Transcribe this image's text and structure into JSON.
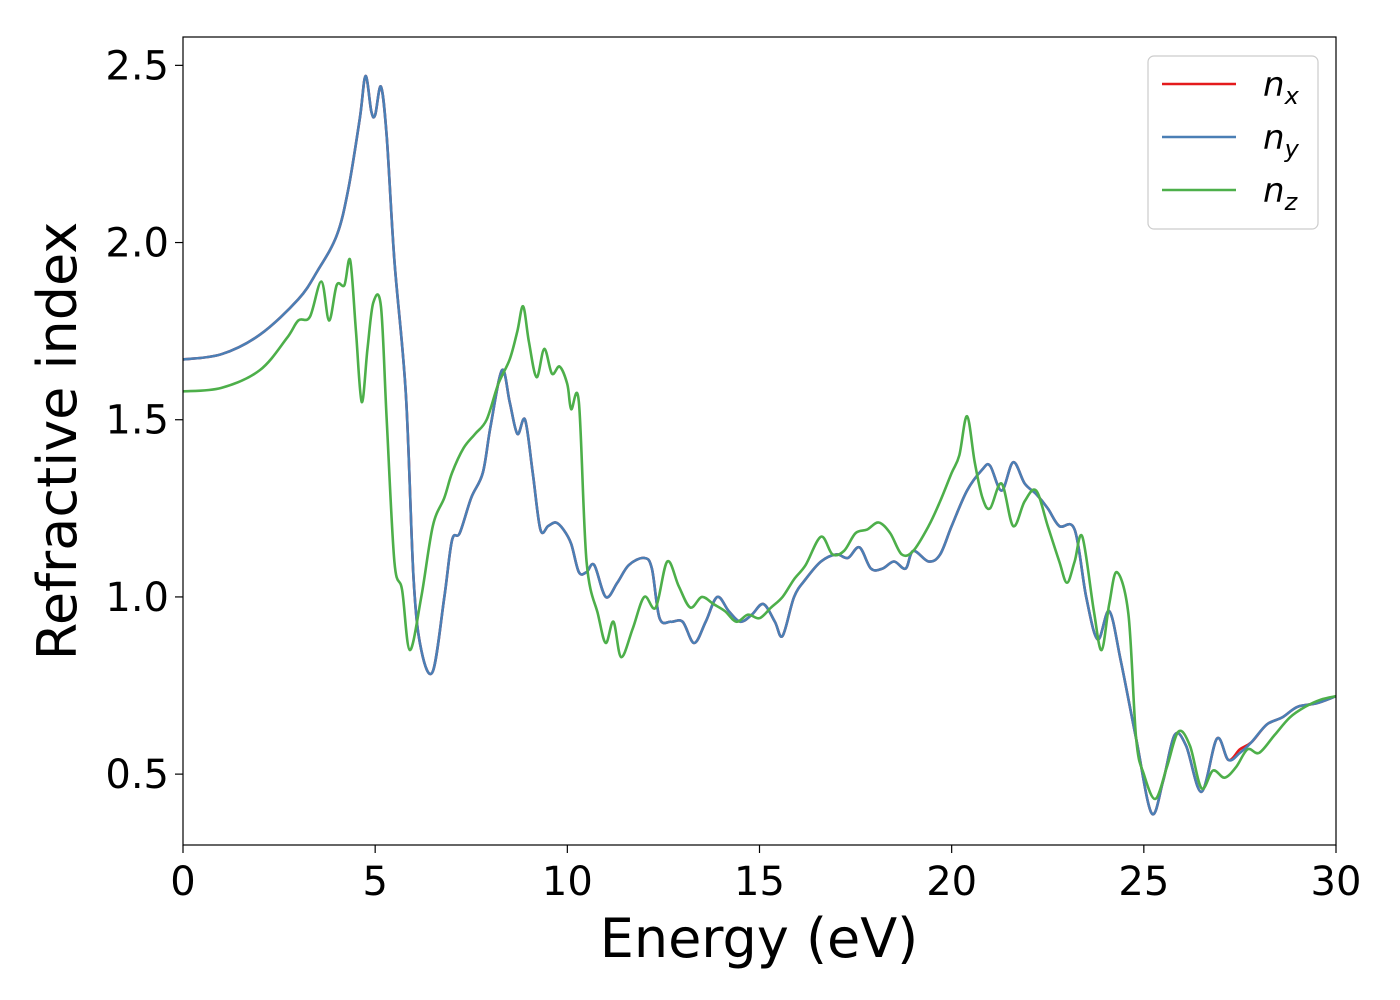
{
  "chart_data": {
    "type": "line",
    "title": "",
    "xlabel": "Energy (eV)",
    "ylabel": "Refractive index",
    "xlim": [
      0,
      30
    ],
    "ylim": [
      0.3,
      2.58
    ],
    "xticks": [
      0,
      5,
      10,
      15,
      20,
      25,
      30
    ],
    "yticks": [
      0.5,
      1.0,
      1.5,
      2.0,
      2.5
    ],
    "xtick_labels": [
      "0",
      "5",
      "10",
      "15",
      "20",
      "25",
      "30"
    ],
    "ytick_labels": [
      "0.5",
      "1.0",
      "1.5",
      "2.0",
      "2.5"
    ],
    "grid": false,
    "legend_position": "top-right",
    "series": [
      {
        "name": "n",
        "subscript": "x",
        "color": "#e41a1c",
        "points": [
          [
            0,
            1.67
          ],
          [
            1,
            1.685
          ],
          [
            2,
            1.74
          ],
          [
            3,
            1.84
          ],
          [
            3.5,
            1.92
          ],
          [
            4,
            2.02
          ],
          [
            4.3,
            2.15
          ],
          [
            4.6,
            2.35
          ],
          [
            4.75,
            2.47
          ],
          [
            4.9,
            2.37
          ],
          [
            5.0,
            2.36
          ],
          [
            5.15,
            2.44
          ],
          [
            5.3,
            2.3
          ],
          [
            5.5,
            1.95
          ],
          [
            5.8,
            1.57
          ],
          [
            6.0,
            1.05
          ],
          [
            6.2,
            0.85
          ],
          [
            6.5,
            0.79
          ],
          [
            6.8,
            1.0
          ],
          [
            7.0,
            1.16
          ],
          [
            7.2,
            1.18
          ],
          [
            7.5,
            1.28
          ],
          [
            7.8,
            1.35
          ],
          [
            8.0,
            1.48
          ],
          [
            8.3,
            1.64
          ],
          [
            8.5,
            1.55
          ],
          [
            8.7,
            1.46
          ],
          [
            8.9,
            1.5
          ],
          [
            9.1,
            1.35
          ],
          [
            9.3,
            1.19
          ],
          [
            9.5,
            1.2
          ],
          [
            9.7,
            1.21
          ],
          [
            9.9,
            1.19
          ],
          [
            10.1,
            1.15
          ],
          [
            10.3,
            1.07
          ],
          [
            10.5,
            1.07
          ],
          [
            10.7,
            1.09
          ],
          [
            11.0,
            1.0
          ],
          [
            11.3,
            1.04
          ],
          [
            11.6,
            1.09
          ],
          [
            12.0,
            1.11
          ],
          [
            12.2,
            1.08
          ],
          [
            12.4,
            0.94
          ],
          [
            12.7,
            0.93
          ],
          [
            13.0,
            0.93
          ],
          [
            13.3,
            0.87
          ],
          [
            13.6,
            0.93
          ],
          [
            13.9,
            1.0
          ],
          [
            14.2,
            0.96
          ],
          [
            14.5,
            0.93
          ],
          [
            14.8,
            0.95
          ],
          [
            15.1,
            0.98
          ],
          [
            15.4,
            0.93
          ],
          [
            15.6,
            0.89
          ],
          [
            15.9,
            1.0
          ],
          [
            16.2,
            1.05
          ],
          [
            16.6,
            1.1
          ],
          [
            17.0,
            1.12
          ],
          [
            17.3,
            1.11
          ],
          [
            17.6,
            1.14
          ],
          [
            17.9,
            1.08
          ],
          [
            18.2,
            1.08
          ],
          [
            18.5,
            1.1
          ],
          [
            18.8,
            1.08
          ],
          [
            19.0,
            1.13
          ],
          [
            19.4,
            1.1
          ],
          [
            19.7,
            1.12
          ],
          [
            20.0,
            1.2
          ],
          [
            20.4,
            1.3
          ],
          [
            20.8,
            1.36
          ],
          [
            21.0,
            1.37
          ],
          [
            21.3,
            1.3
          ],
          [
            21.6,
            1.38
          ],
          [
            21.9,
            1.32
          ],
          [
            22.2,
            1.29
          ],
          [
            22.5,
            1.25
          ],
          [
            22.8,
            1.2
          ],
          [
            23.2,
            1.19
          ],
          [
            23.5,
            1.0
          ],
          [
            23.8,
            0.88
          ],
          [
            24.1,
            0.96
          ],
          [
            24.4,
            0.82
          ],
          [
            24.8,
            0.6
          ],
          [
            25.2,
            0.39
          ],
          [
            25.5,
            0.48
          ],
          [
            25.8,
            0.61
          ],
          [
            26.1,
            0.58
          ],
          [
            26.5,
            0.45
          ],
          [
            26.9,
            0.6
          ],
          [
            27.2,
            0.54
          ],
          [
            27.5,
            0.57
          ],
          [
            27.8,
            0.59
          ],
          [
            28.2,
            0.64
          ],
          [
            28.6,
            0.66
          ],
          [
            29.0,
            0.69
          ],
          [
            29.5,
            0.7
          ],
          [
            30.0,
            0.72
          ]
        ]
      },
      {
        "name": "n",
        "subscript": "y",
        "color": "#4a7fb5",
        "points": [
          [
            0,
            1.67
          ],
          [
            1,
            1.685
          ],
          [
            2,
            1.74
          ],
          [
            3,
            1.84
          ],
          [
            3.5,
            1.92
          ],
          [
            4,
            2.02
          ],
          [
            4.3,
            2.15
          ],
          [
            4.6,
            2.35
          ],
          [
            4.75,
            2.47
          ],
          [
            4.9,
            2.37
          ],
          [
            5.0,
            2.36
          ],
          [
            5.15,
            2.44
          ],
          [
            5.3,
            2.3
          ],
          [
            5.5,
            1.95
          ],
          [
            5.8,
            1.57
          ],
          [
            6.0,
            1.05
          ],
          [
            6.2,
            0.85
          ],
          [
            6.5,
            0.79
          ],
          [
            6.8,
            1.0
          ],
          [
            7.0,
            1.16
          ],
          [
            7.2,
            1.18
          ],
          [
            7.5,
            1.28
          ],
          [
            7.8,
            1.35
          ],
          [
            8.0,
            1.48
          ],
          [
            8.3,
            1.64
          ],
          [
            8.5,
            1.55
          ],
          [
            8.7,
            1.46
          ],
          [
            8.9,
            1.5
          ],
          [
            9.1,
            1.35
          ],
          [
            9.3,
            1.19
          ],
          [
            9.5,
            1.2
          ],
          [
            9.7,
            1.21
          ],
          [
            9.9,
            1.19
          ],
          [
            10.1,
            1.15
          ],
          [
            10.3,
            1.07
          ],
          [
            10.5,
            1.07
          ],
          [
            10.7,
            1.09
          ],
          [
            11.0,
            1.0
          ],
          [
            11.3,
            1.04
          ],
          [
            11.6,
            1.09
          ],
          [
            12.0,
            1.11
          ],
          [
            12.2,
            1.08
          ],
          [
            12.4,
            0.94
          ],
          [
            12.7,
            0.93
          ],
          [
            13.0,
            0.93
          ],
          [
            13.3,
            0.87
          ],
          [
            13.6,
            0.93
          ],
          [
            13.9,
            1.0
          ],
          [
            14.2,
            0.96
          ],
          [
            14.5,
            0.93
          ],
          [
            14.8,
            0.95
          ],
          [
            15.1,
            0.98
          ],
          [
            15.4,
            0.93
          ],
          [
            15.6,
            0.89
          ],
          [
            15.9,
            1.0
          ],
          [
            16.2,
            1.05
          ],
          [
            16.6,
            1.1
          ],
          [
            17.0,
            1.12
          ],
          [
            17.3,
            1.11
          ],
          [
            17.6,
            1.14
          ],
          [
            17.9,
            1.08
          ],
          [
            18.2,
            1.08
          ],
          [
            18.5,
            1.1
          ],
          [
            18.8,
            1.08
          ],
          [
            19.0,
            1.13
          ],
          [
            19.4,
            1.1
          ],
          [
            19.7,
            1.12
          ],
          [
            20.0,
            1.2
          ],
          [
            20.4,
            1.3
          ],
          [
            20.8,
            1.36
          ],
          [
            21.0,
            1.37
          ],
          [
            21.3,
            1.3
          ],
          [
            21.6,
            1.38
          ],
          [
            21.9,
            1.32
          ],
          [
            22.2,
            1.29
          ],
          [
            22.5,
            1.25
          ],
          [
            22.8,
            1.2
          ],
          [
            23.2,
            1.19
          ],
          [
            23.5,
            1.0
          ],
          [
            23.8,
            0.88
          ],
          [
            24.1,
            0.96
          ],
          [
            24.4,
            0.82
          ],
          [
            24.8,
            0.6
          ],
          [
            25.2,
            0.39
          ],
          [
            25.5,
            0.48
          ],
          [
            25.8,
            0.61
          ],
          [
            26.1,
            0.58
          ],
          [
            26.5,
            0.45
          ],
          [
            26.9,
            0.6
          ],
          [
            27.2,
            0.54
          ],
          [
            27.5,
            0.56
          ],
          [
            27.8,
            0.59
          ],
          [
            28.2,
            0.64
          ],
          [
            28.6,
            0.66
          ],
          [
            29.0,
            0.69
          ],
          [
            29.5,
            0.7
          ],
          [
            30.0,
            0.72
          ]
        ]
      },
      {
        "name": "n",
        "subscript": "z",
        "color": "#4daf4a",
        "points": [
          [
            0,
            1.58
          ],
          [
            1,
            1.59
          ],
          [
            2,
            1.64
          ],
          [
            2.7,
            1.73
          ],
          [
            3.0,
            1.78
          ],
          [
            3.3,
            1.79
          ],
          [
            3.6,
            1.89
          ],
          [
            3.8,
            1.78
          ],
          [
            4.0,
            1.88
          ],
          [
            4.2,
            1.88
          ],
          [
            4.35,
            1.95
          ],
          [
            4.5,
            1.75
          ],
          [
            4.65,
            1.55
          ],
          [
            4.8,
            1.7
          ],
          [
            4.95,
            1.83
          ],
          [
            5.15,
            1.82
          ],
          [
            5.3,
            1.5
          ],
          [
            5.5,
            1.1
          ],
          [
            5.7,
            1.02
          ],
          [
            5.9,
            0.85
          ],
          [
            6.2,
            1.0
          ],
          [
            6.5,
            1.2
          ],
          [
            6.8,
            1.28
          ],
          [
            7.0,
            1.35
          ],
          [
            7.3,
            1.42
          ],
          [
            7.6,
            1.46
          ],
          [
            7.9,
            1.5
          ],
          [
            8.2,
            1.6
          ],
          [
            8.5,
            1.67
          ],
          [
            8.7,
            1.75
          ],
          [
            8.85,
            1.82
          ],
          [
            9.0,
            1.72
          ],
          [
            9.2,
            1.62
          ],
          [
            9.4,
            1.7
          ],
          [
            9.6,
            1.63
          ],
          [
            9.8,
            1.65
          ],
          [
            10.0,
            1.6
          ],
          [
            10.1,
            1.53
          ],
          [
            10.3,
            1.55
          ],
          [
            10.5,
            1.1
          ],
          [
            10.8,
            0.95
          ],
          [
            11.0,
            0.87
          ],
          [
            11.2,
            0.93
          ],
          [
            11.4,
            0.83
          ],
          [
            11.7,
            0.91
          ],
          [
            12.0,
            1.0
          ],
          [
            12.3,
            0.97
          ],
          [
            12.6,
            1.1
          ],
          [
            12.9,
            1.03
          ],
          [
            13.2,
            0.97
          ],
          [
            13.5,
            1.0
          ],
          [
            13.8,
            0.98
          ],
          [
            14.1,
            0.96
          ],
          [
            14.4,
            0.93
          ],
          [
            14.7,
            0.95
          ],
          [
            15.0,
            0.94
          ],
          [
            15.3,
            0.97
          ],
          [
            15.6,
            1.0
          ],
          [
            15.9,
            1.05
          ],
          [
            16.2,
            1.09
          ],
          [
            16.6,
            1.17
          ],
          [
            16.9,
            1.12
          ],
          [
            17.2,
            1.13
          ],
          [
            17.5,
            1.18
          ],
          [
            17.8,
            1.19
          ],
          [
            18.1,
            1.21
          ],
          [
            18.4,
            1.18
          ],
          [
            18.7,
            1.12
          ],
          [
            19.0,
            1.13
          ],
          [
            19.4,
            1.2
          ],
          [
            19.7,
            1.27
          ],
          [
            20.0,
            1.35
          ],
          [
            20.2,
            1.4
          ],
          [
            20.4,
            1.51
          ],
          [
            20.6,
            1.38
          ],
          [
            20.8,
            1.28
          ],
          [
            21.0,
            1.25
          ],
          [
            21.3,
            1.32
          ],
          [
            21.6,
            1.2
          ],
          [
            21.9,
            1.27
          ],
          [
            22.2,
            1.3
          ],
          [
            22.5,
            1.2
          ],
          [
            22.8,
            1.1
          ],
          [
            23.0,
            1.04
          ],
          [
            23.2,
            1.1
          ],
          [
            23.4,
            1.17
          ],
          [
            23.7,
            0.96
          ],
          [
            23.9,
            0.85
          ],
          [
            24.1,
            0.98
          ],
          [
            24.3,
            1.07
          ],
          [
            24.6,
            0.95
          ],
          [
            24.8,
            0.6
          ],
          [
            25.0,
            0.5
          ],
          [
            25.3,
            0.43
          ],
          [
            25.6,
            0.52
          ],
          [
            25.9,
            0.62
          ],
          [
            26.2,
            0.58
          ],
          [
            26.5,
            0.46
          ],
          [
            26.8,
            0.51
          ],
          [
            27.1,
            0.49
          ],
          [
            27.4,
            0.52
          ],
          [
            27.7,
            0.57
          ],
          [
            28.0,
            0.56
          ],
          [
            28.4,
            0.61
          ],
          [
            28.8,
            0.66
          ],
          [
            29.2,
            0.69
          ],
          [
            29.6,
            0.71
          ],
          [
            30.0,
            0.72
          ]
        ]
      }
    ]
  }
}
